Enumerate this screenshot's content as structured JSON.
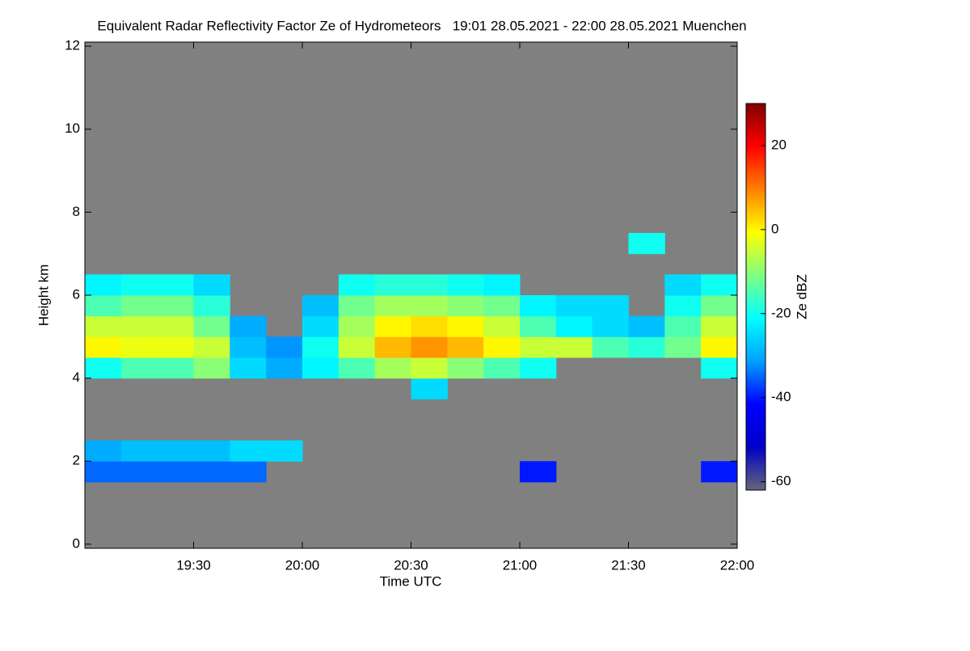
{
  "chart_data": {
    "type": "heatmap",
    "title": "Equivalent Radar Reflectivity Factor Ze of Hydrometeors   19:01 28.05.2021 - 22:00 28.05.2021 Muenchen",
    "x_label": "Time UTC",
    "y_label": "Height km",
    "colorbar_label": "Ze dBZ",
    "background_color": "#808080",
    "colormap": [
      "#66667a",
      "#0000c8",
      "#0000ff",
      "#00a0ff",
      "#00ffff",
      "#80ff80",
      "#ffff00",
      "#ff8000",
      "#ff0000",
      "#800000"
    ],
    "xlim": [
      1140,
      1320
    ],
    "xticks": [
      {
        "value": 1170,
        "label": "19:30"
      },
      {
        "value": 1200,
        "label": "20:00"
      },
      {
        "value": 1230,
        "label": "20:30"
      },
      {
        "value": 1260,
        "label": "21:00"
      },
      {
        "value": 1290,
        "label": "21:30"
      },
      {
        "value": 1320,
        "label": "22:00"
      }
    ],
    "ylim": [
      -0.1,
      12.1
    ],
    "yticks": [
      0,
      2,
      4,
      6,
      8,
      10,
      12
    ],
    "zlim": [
      -62,
      30
    ],
    "zticks": [
      -60,
      -40,
      -20,
      0,
      20
    ],
    "x": [
      1145,
      1155,
      1165,
      1175,
      1185,
      1195,
      1205,
      1215,
      1225,
      1235,
      1245,
      1255,
      1265,
      1275,
      1285,
      1295,
      1305,
      1315
    ],
    "y": [
      0.25,
      0.75,
      1.25,
      1.75,
      2.25,
      2.75,
      3.25,
      3.75,
      4.25,
      4.75,
      5.25,
      5.75,
      6.25,
      6.75,
      7.25
    ],
    "z": [
      [
        null,
        null,
        null,
        null,
        null,
        null,
        null,
        null,
        null,
        null,
        null,
        null,
        null,
        null,
        null,
        null,
        null,
        null
      ],
      [
        null,
        null,
        null,
        null,
        null,
        null,
        null,
        null,
        null,
        null,
        null,
        null,
        null,
        null,
        null,
        null,
        null,
        null
      ],
      [
        null,
        null,
        null,
        null,
        null,
        null,
        null,
        null,
        null,
        null,
        null,
        null,
        null,
        null,
        null,
        null,
        null,
        null
      ],
      [
        -35,
        -35,
        -35,
        -35,
        -35,
        null,
        null,
        null,
        null,
        null,
        null,
        null,
        -40,
        null,
        null,
        null,
        null,
        -40
      ],
      [
        -30,
        -28,
        -28,
        -28,
        -25,
        -25,
        null,
        null,
        null,
        null,
        null,
        null,
        null,
        null,
        null,
        null,
        null,
        null
      ],
      [
        null,
        null,
        null,
        null,
        null,
        null,
        null,
        null,
        null,
        null,
        null,
        null,
        null,
        null,
        null,
        null,
        null,
        null
      ],
      [
        null,
        null,
        null,
        null,
        null,
        null,
        null,
        null,
        null,
        null,
        null,
        null,
        null,
        null,
        null,
        null,
        null,
        null
      ],
      [
        null,
        null,
        null,
        null,
        null,
        null,
        null,
        null,
        null,
        -25,
        null,
        null,
        null,
        null,
        null,
        null,
        null,
        null
      ],
      [
        -20,
        -15,
        -15,
        -10,
        -25,
        -30,
        -22,
        -15,
        -8,
        -5,
        -10,
        -15,
        -20,
        null,
        null,
        null,
        null,
        -20
      ],
      [
        0,
        -2,
        -2,
        -5,
        -28,
        -32,
        -20,
        -5,
        5,
        8,
        5,
        0,
        -5,
        -5,
        -15,
        -18,
        -12,
        0
      ],
      [
        -5,
        -5,
        -5,
        -12,
        -30,
        null,
        -25,
        -8,
        0,
        2,
        0,
        -5,
        -15,
        -22,
        -25,
        -28,
        -15,
        -5
      ],
      [
        -15,
        -12,
        -12,
        -18,
        null,
        null,
        -28,
        -12,
        -8,
        -8,
        -10,
        -12,
        -22,
        -25,
        -25,
        null,
        -20,
        -12
      ],
      [
        -22,
        -20,
        -20,
        -25,
        null,
        null,
        null,
        -20,
        -18,
        -18,
        -20,
        -22,
        null,
        null,
        null,
        null,
        -25,
        -20
      ],
      [
        null,
        null,
        null,
        null,
        null,
        null,
        null,
        null,
        null,
        null,
        null,
        null,
        null,
        null,
        null,
        null,
        null,
        null
      ],
      [
        null,
        null,
        null,
        null,
        null,
        null,
        null,
        null,
        null,
        null,
        null,
        null,
        null,
        null,
        null,
        -20,
        null,
        null
      ]
    ]
  }
}
